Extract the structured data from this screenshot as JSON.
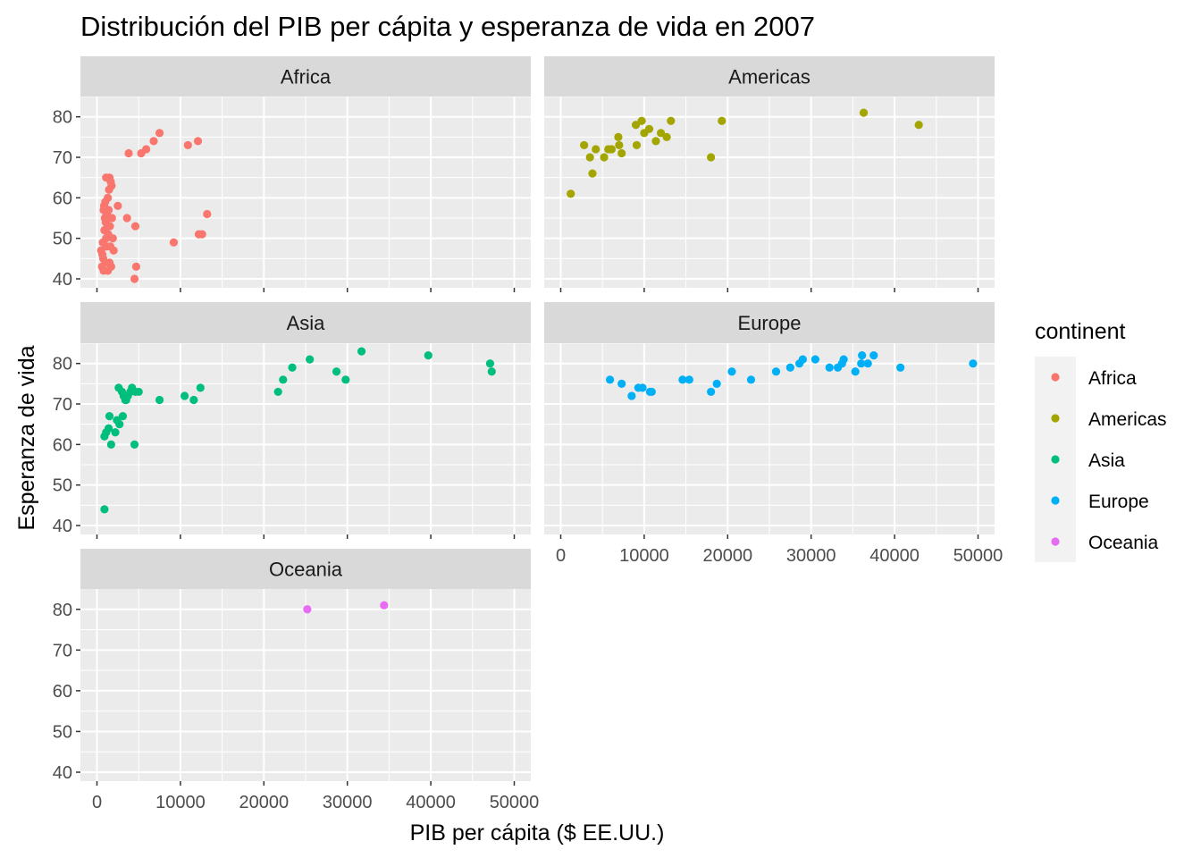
{
  "chart_data": {
    "type": "scatter",
    "title": "Distribución del PIB per cápita y esperanza de vida en 2007",
    "xlabel": "PIB per cápita ($ EE.UU.)",
    "ylabel": "Esperanza de vida",
    "xlim": [
      0,
      50000
    ],
    "ylim": [
      40,
      85
    ],
    "x_ticks": [
      0,
      10000,
      20000,
      30000,
      40000,
      50000
    ],
    "y_ticks": [
      40,
      50,
      60,
      70,
      80
    ],
    "grid": true,
    "legend": {
      "title": "continent",
      "placement": "right"
    },
    "series": [
      {
        "name": "Africa",
        "color": "#F8766D",
        "points": [
          [
            500,
            47
          ],
          [
            600,
            43
          ],
          [
            650,
            46
          ],
          [
            700,
            49
          ],
          [
            750,
            45
          ],
          [
            800,
            42
          ],
          [
            800,
            57
          ],
          [
            850,
            58
          ],
          [
            900,
            52
          ],
          [
            950,
            55
          ],
          [
            1000,
            44
          ],
          [
            1000,
            59
          ],
          [
            1050,
            54
          ],
          [
            1100,
            50
          ],
          [
            1100,
            65
          ],
          [
            1150,
            48
          ],
          [
            1200,
            56
          ],
          [
            1250,
            53
          ],
          [
            1300,
            42
          ],
          [
            1300,
            60
          ],
          [
            1350,
            51
          ],
          [
            1400,
            57
          ],
          [
            1450,
            62
          ],
          [
            1500,
            44
          ],
          [
            1500,
            65
          ],
          [
            1550,
            53
          ],
          [
            1600,
            48
          ],
          [
            1650,
            64
          ],
          [
            1700,
            43
          ],
          [
            1750,
            63
          ],
          [
            1800,
            55
          ],
          [
            1900,
            50
          ],
          [
            2000,
            47
          ],
          [
            2500,
            58
          ],
          [
            3600,
            55
          ],
          [
            3800,
            71
          ],
          [
            4500,
            40
          ],
          [
            4600,
            53
          ],
          [
            4700,
            43
          ],
          [
            5300,
            71
          ],
          [
            5900,
            72
          ],
          [
            6800,
            74
          ],
          [
            7500,
            76
          ],
          [
            9200,
            49
          ],
          [
            10900,
            73
          ],
          [
            12100,
            74
          ],
          [
            12200,
            51
          ],
          [
            12600,
            51
          ],
          [
            13200,
            56
          ]
        ]
      },
      {
        "name": "Americas",
        "color": "#A3A500",
        "points": [
          [
            1200,
            61
          ],
          [
            2800,
            73
          ],
          [
            3500,
            70
          ],
          [
            3800,
            66
          ],
          [
            4200,
            72
          ],
          [
            5200,
            70
          ],
          [
            5700,
            72
          ],
          [
            6100,
            72
          ],
          [
            6900,
            75
          ],
          [
            7000,
            73
          ],
          [
            7300,
            71
          ],
          [
            9100,
            73
          ],
          [
            9000,
            78
          ],
          [
            9700,
            79
          ],
          [
            10000,
            76
          ],
          [
            10600,
            77
          ],
          [
            11400,
            74
          ],
          [
            12000,
            76
          ],
          [
            12700,
            75
          ],
          [
            13200,
            79
          ],
          [
            18000,
            70
          ],
          [
            19300,
            79
          ],
          [
            36300,
            81
          ],
          [
            42900,
            78
          ]
        ]
      },
      {
        "name": "Asia",
        "color": "#00BF7D",
        "points": [
          [
            900,
            44
          ],
          [
            900,
            62
          ],
          [
            1100,
            63
          ],
          [
            1400,
            64
          ],
          [
            1500,
            67
          ],
          [
            1700,
            60
          ],
          [
            2200,
            63
          ],
          [
            2400,
            66
          ],
          [
            2600,
            74
          ],
          [
            2700,
            65
          ],
          [
            3000,
            73
          ],
          [
            3100,
            67
          ],
          [
            3200,
            72
          ],
          [
            3400,
            71
          ],
          [
            3500,
            71
          ],
          [
            3700,
            72
          ],
          [
            4000,
            73
          ],
          [
            4200,
            74
          ],
          [
            4500,
            60
          ],
          [
            4600,
            73
          ],
          [
            5000,
            73
          ],
          [
            7500,
            71
          ],
          [
            10500,
            72
          ],
          [
            11600,
            71
          ],
          [
            12400,
            74
          ],
          [
            21700,
            73
          ],
          [
            22300,
            76
          ],
          [
            23400,
            79
          ],
          [
            25500,
            81
          ],
          [
            28700,
            78
          ],
          [
            29800,
            76
          ],
          [
            31700,
            83
          ],
          [
            39700,
            82
          ],
          [
            47100,
            80
          ],
          [
            47300,
            78
          ]
        ]
      },
      {
        "name": "Europe",
        "color": "#00B0F6",
        "points": [
          [
            5900,
            76
          ],
          [
            7300,
            75
          ],
          [
            8500,
            72
          ],
          [
            9300,
            74
          ],
          [
            9800,
            74
          ],
          [
            10700,
            73
          ],
          [
            10900,
            73
          ],
          [
            14600,
            76
          ],
          [
            15400,
            76
          ],
          [
            18000,
            73
          ],
          [
            18700,
            75
          ],
          [
            20500,
            78
          ],
          [
            22800,
            76
          ],
          [
            25800,
            78
          ],
          [
            27500,
            79
          ],
          [
            28600,
            80
          ],
          [
            29000,
            81
          ],
          [
            30500,
            81
          ],
          [
            32200,
            79
          ],
          [
            33200,
            79
          ],
          [
            33700,
            80
          ],
          [
            33900,
            81
          ],
          [
            35300,
            78
          ],
          [
            36000,
            80
          ],
          [
            36100,
            82
          ],
          [
            36800,
            80
          ],
          [
            37500,
            82
          ],
          [
            40700,
            79
          ],
          [
            49400,
            80
          ]
        ]
      },
      {
        "name": "Oceania",
        "color": "#E76BF3",
        "points": [
          [
            25200,
            80
          ],
          [
            34400,
            81
          ]
        ]
      }
    ]
  }
}
